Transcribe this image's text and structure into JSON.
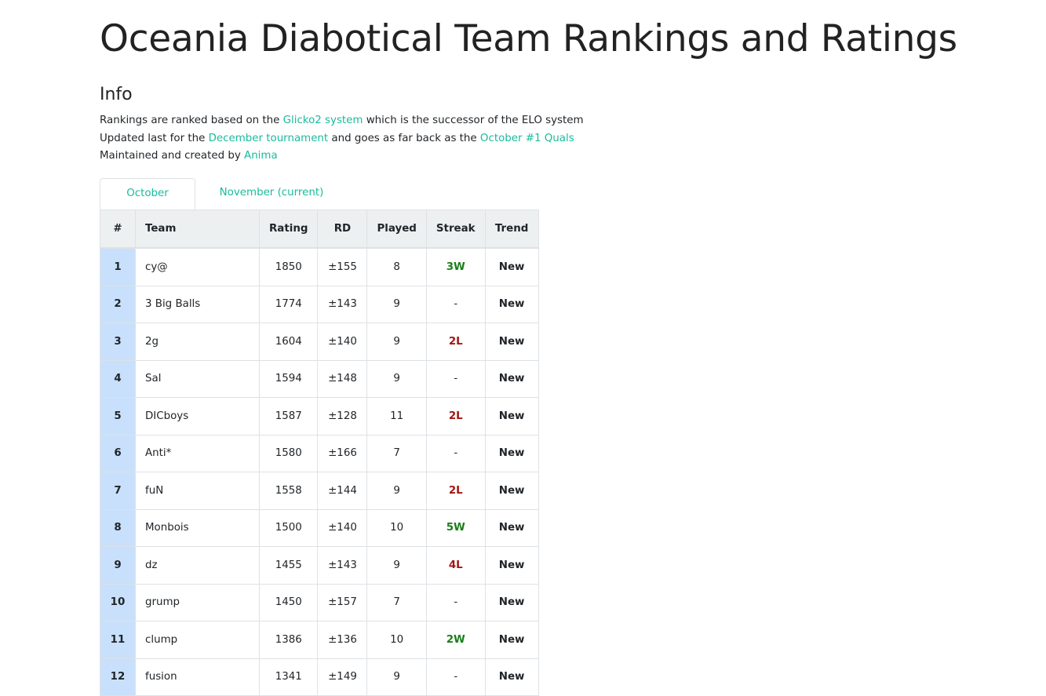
{
  "page": {
    "title": "Oceania Diabotical Team Rankings and Ratings"
  },
  "info": {
    "heading": "Info",
    "line1_pre": "Rankings are ranked based on the ",
    "line1_link": "Glicko2 system",
    "line1_post": " which is the successor of the ELO system",
    "line2_pre": "Updated last for the ",
    "line2_link": "December tournament",
    "line2_mid": " and goes as far back as the ",
    "line2_link2": "October #1 Quals",
    "line3_pre": "Maintained and created by ",
    "line3_link": "Anima"
  },
  "tabs": [
    {
      "label": "October",
      "active": true
    },
    {
      "label": "November (current)",
      "active": false
    }
  ],
  "table": {
    "headers": [
      "#",
      "Team",
      "Rating",
      "RD",
      "Played",
      "Streak",
      "Trend"
    ],
    "rows": [
      {
        "rank": "1",
        "team": "cy@",
        "rating": "1850",
        "rd": "±155",
        "played": "8",
        "streak": "3W",
        "trend": "New"
      },
      {
        "rank": "2",
        "team": "3 Big Balls",
        "rating": "1774",
        "rd": "±143",
        "played": "9",
        "streak": "-",
        "trend": "New"
      },
      {
        "rank": "3",
        "team": "2g",
        "rating": "1604",
        "rd": "±140",
        "played": "9",
        "streak": "2L",
        "trend": "New"
      },
      {
        "rank": "4",
        "team": "Sal",
        "rating": "1594",
        "rd": "±148",
        "played": "9",
        "streak": "-",
        "trend": "New"
      },
      {
        "rank": "5",
        "team": "DICboys",
        "rating": "1587",
        "rd": "±128",
        "played": "11",
        "streak": "2L",
        "trend": "New"
      },
      {
        "rank": "6",
        "team": "Anti*",
        "rating": "1580",
        "rd": "±166",
        "played": "7",
        "streak": "-",
        "trend": "New"
      },
      {
        "rank": "7",
        "team": "fuN",
        "rating": "1558",
        "rd": "±144",
        "played": "9",
        "streak": "2L",
        "trend": "New"
      },
      {
        "rank": "8",
        "team": "Monbois",
        "rating": "1500",
        "rd": "±140",
        "played": "10",
        "streak": "5W",
        "trend": "New"
      },
      {
        "rank": "9",
        "team": "dz",
        "rating": "1455",
        "rd": "±143",
        "played": "9",
        "streak": "4L",
        "trend": "New"
      },
      {
        "rank": "10",
        "team": "grump",
        "rating": "1450",
        "rd": "±157",
        "played": "7",
        "streak": "-",
        "trend": "New"
      },
      {
        "rank": "11",
        "team": "clump",
        "rating": "1386",
        "rd": "±136",
        "played": "10",
        "streak": "2W",
        "trend": "New"
      },
      {
        "rank": "12",
        "team": "fusion",
        "rating": "1341",
        "rd": "±149",
        "played": "9",
        "streak": "-",
        "trend": "New"
      }
    ]
  },
  "colors": {
    "link": "#18bc9c",
    "win": "#1a7f1a",
    "loss": "#a31515",
    "rank_bg": "#c8e0fb"
  }
}
